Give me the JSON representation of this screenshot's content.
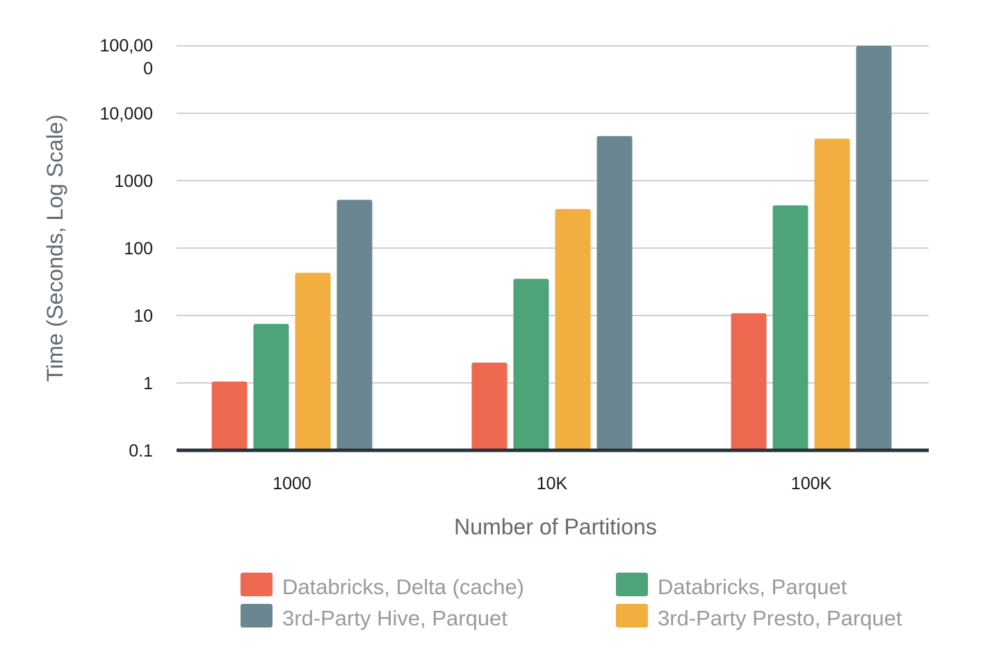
{
  "chart_data": {
    "type": "bar",
    "xlabel": "Number of Partitions",
    "ylabel": "Time (Seconds, Log Scale)",
    "yscale": "log",
    "ylim": [
      0.1,
      100000
    ],
    "grid": true,
    "legend_position": "bottom",
    "categories": [
      "1000",
      "10K",
      "100K"
    ],
    "y_tick_labels": [
      "0.1",
      "1",
      "10",
      "100",
      "1000",
      "10,000",
      [
        "100,00",
        "0"
      ]
    ],
    "y_tick_values": [
      0.1,
      1,
      10,
      100,
      1000,
      10000,
      100000
    ],
    "series": [
      {
        "name": "Databricks, Delta (cache)",
        "color": "#ee6950",
        "values": [
          1.05,
          2.0,
          10.8
        ]
      },
      {
        "name": "Databricks, Parquet",
        "color": "#4ca478",
        "values": [
          7.5,
          35,
          430
        ]
      },
      {
        "name": "3rd-Party Presto, Parquet",
        "color": "#f2ae3e",
        "values": [
          43,
          380,
          4200
        ]
      },
      {
        "name": "3rd-Party Hive, Parquet",
        "color": "#6a8791",
        "values": [
          520,
          4600,
          100000
        ]
      }
    ],
    "legend_order": [
      0,
      1,
      3,
      2
    ]
  }
}
